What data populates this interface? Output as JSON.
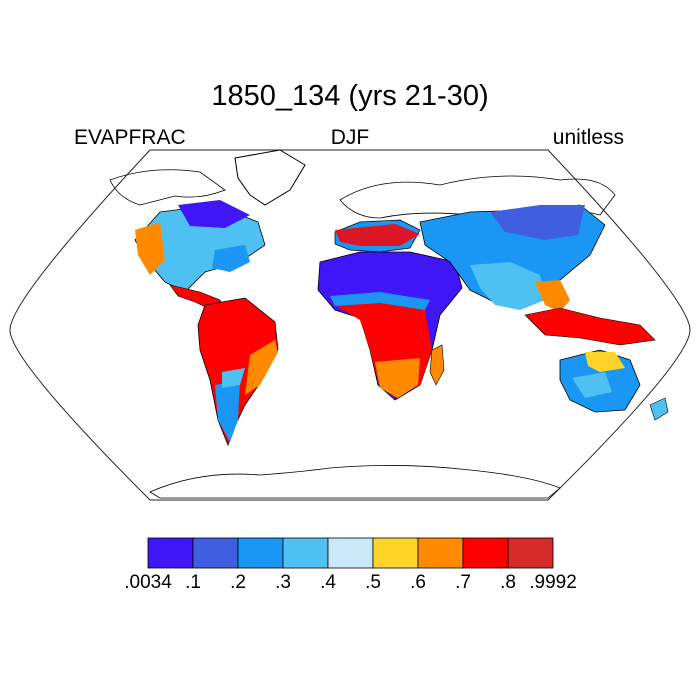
{
  "header": {
    "title": "1850_134 (yrs 21-30)",
    "left": "EVAPFRAC",
    "center": "DJF",
    "right": "unitless"
  },
  "colorbar": {
    "colors": [
      "#3f16f5",
      "#3f5fe0",
      "#1a96f4",
      "#4fc0f2",
      "#c9e8f8",
      "#ffd42a",
      "#ff8a00",
      "#ff0000",
      "#d42a2a"
    ],
    "labels": [
      ".0034",
      ".1",
      ".2",
      ".3",
      ".4",
      ".5",
      ".6",
      ".7",
      ".8",
      ".9992"
    ]
  },
  "map": {
    "projection": "Robinson",
    "land_fill": "#ffffff",
    "coastline_color": "#000000"
  }
}
